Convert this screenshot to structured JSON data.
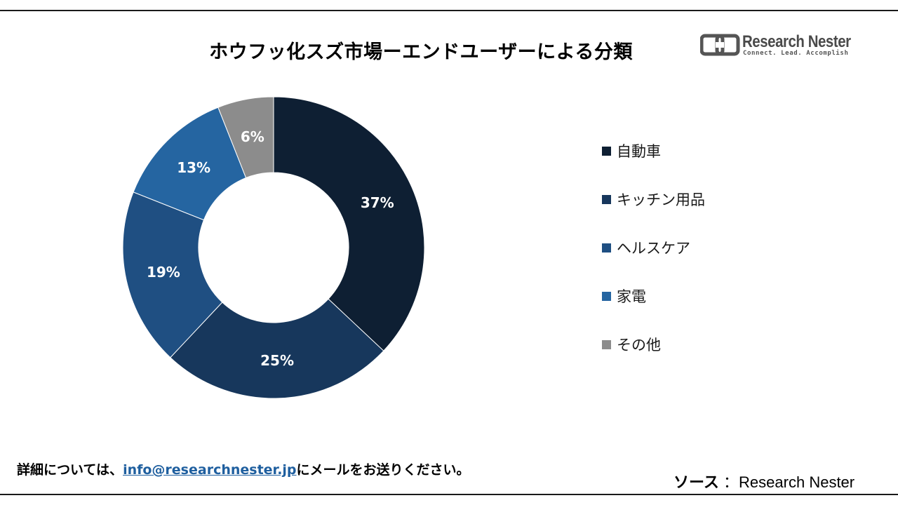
{
  "title": "ホウフッ化スズ市場ーエンドユーザーによる分類",
  "logo": {
    "name": "Research Nester",
    "tagline": "Connect. Lead. Accomplish"
  },
  "chart_data": {
    "type": "pie",
    "donut": true,
    "title": "ホウフッ化スズ市場ーエンドユーザーによる分類",
    "categories": [
      "自動車",
      "キッチン用品",
      "ヘルスケア",
      "家電",
      "その他"
    ],
    "values": [
      37,
      25,
      19,
      13,
      6
    ],
    "data_labels": [
      "37%",
      "25%",
      "19%",
      "13%",
      "6%"
    ],
    "colors": [
      "#0e1f33",
      "#17375c",
      "#1f4f82",
      "#2565a1",
      "#8c8c8c"
    ],
    "legend_position": "right"
  },
  "footer": {
    "prefix": "詳細については、",
    "email": "info@researchnester.jp",
    "suffix": "にメールをお送りください。"
  },
  "source": {
    "label": "ソース",
    "separator": "：",
    "value": "Research Nester"
  }
}
